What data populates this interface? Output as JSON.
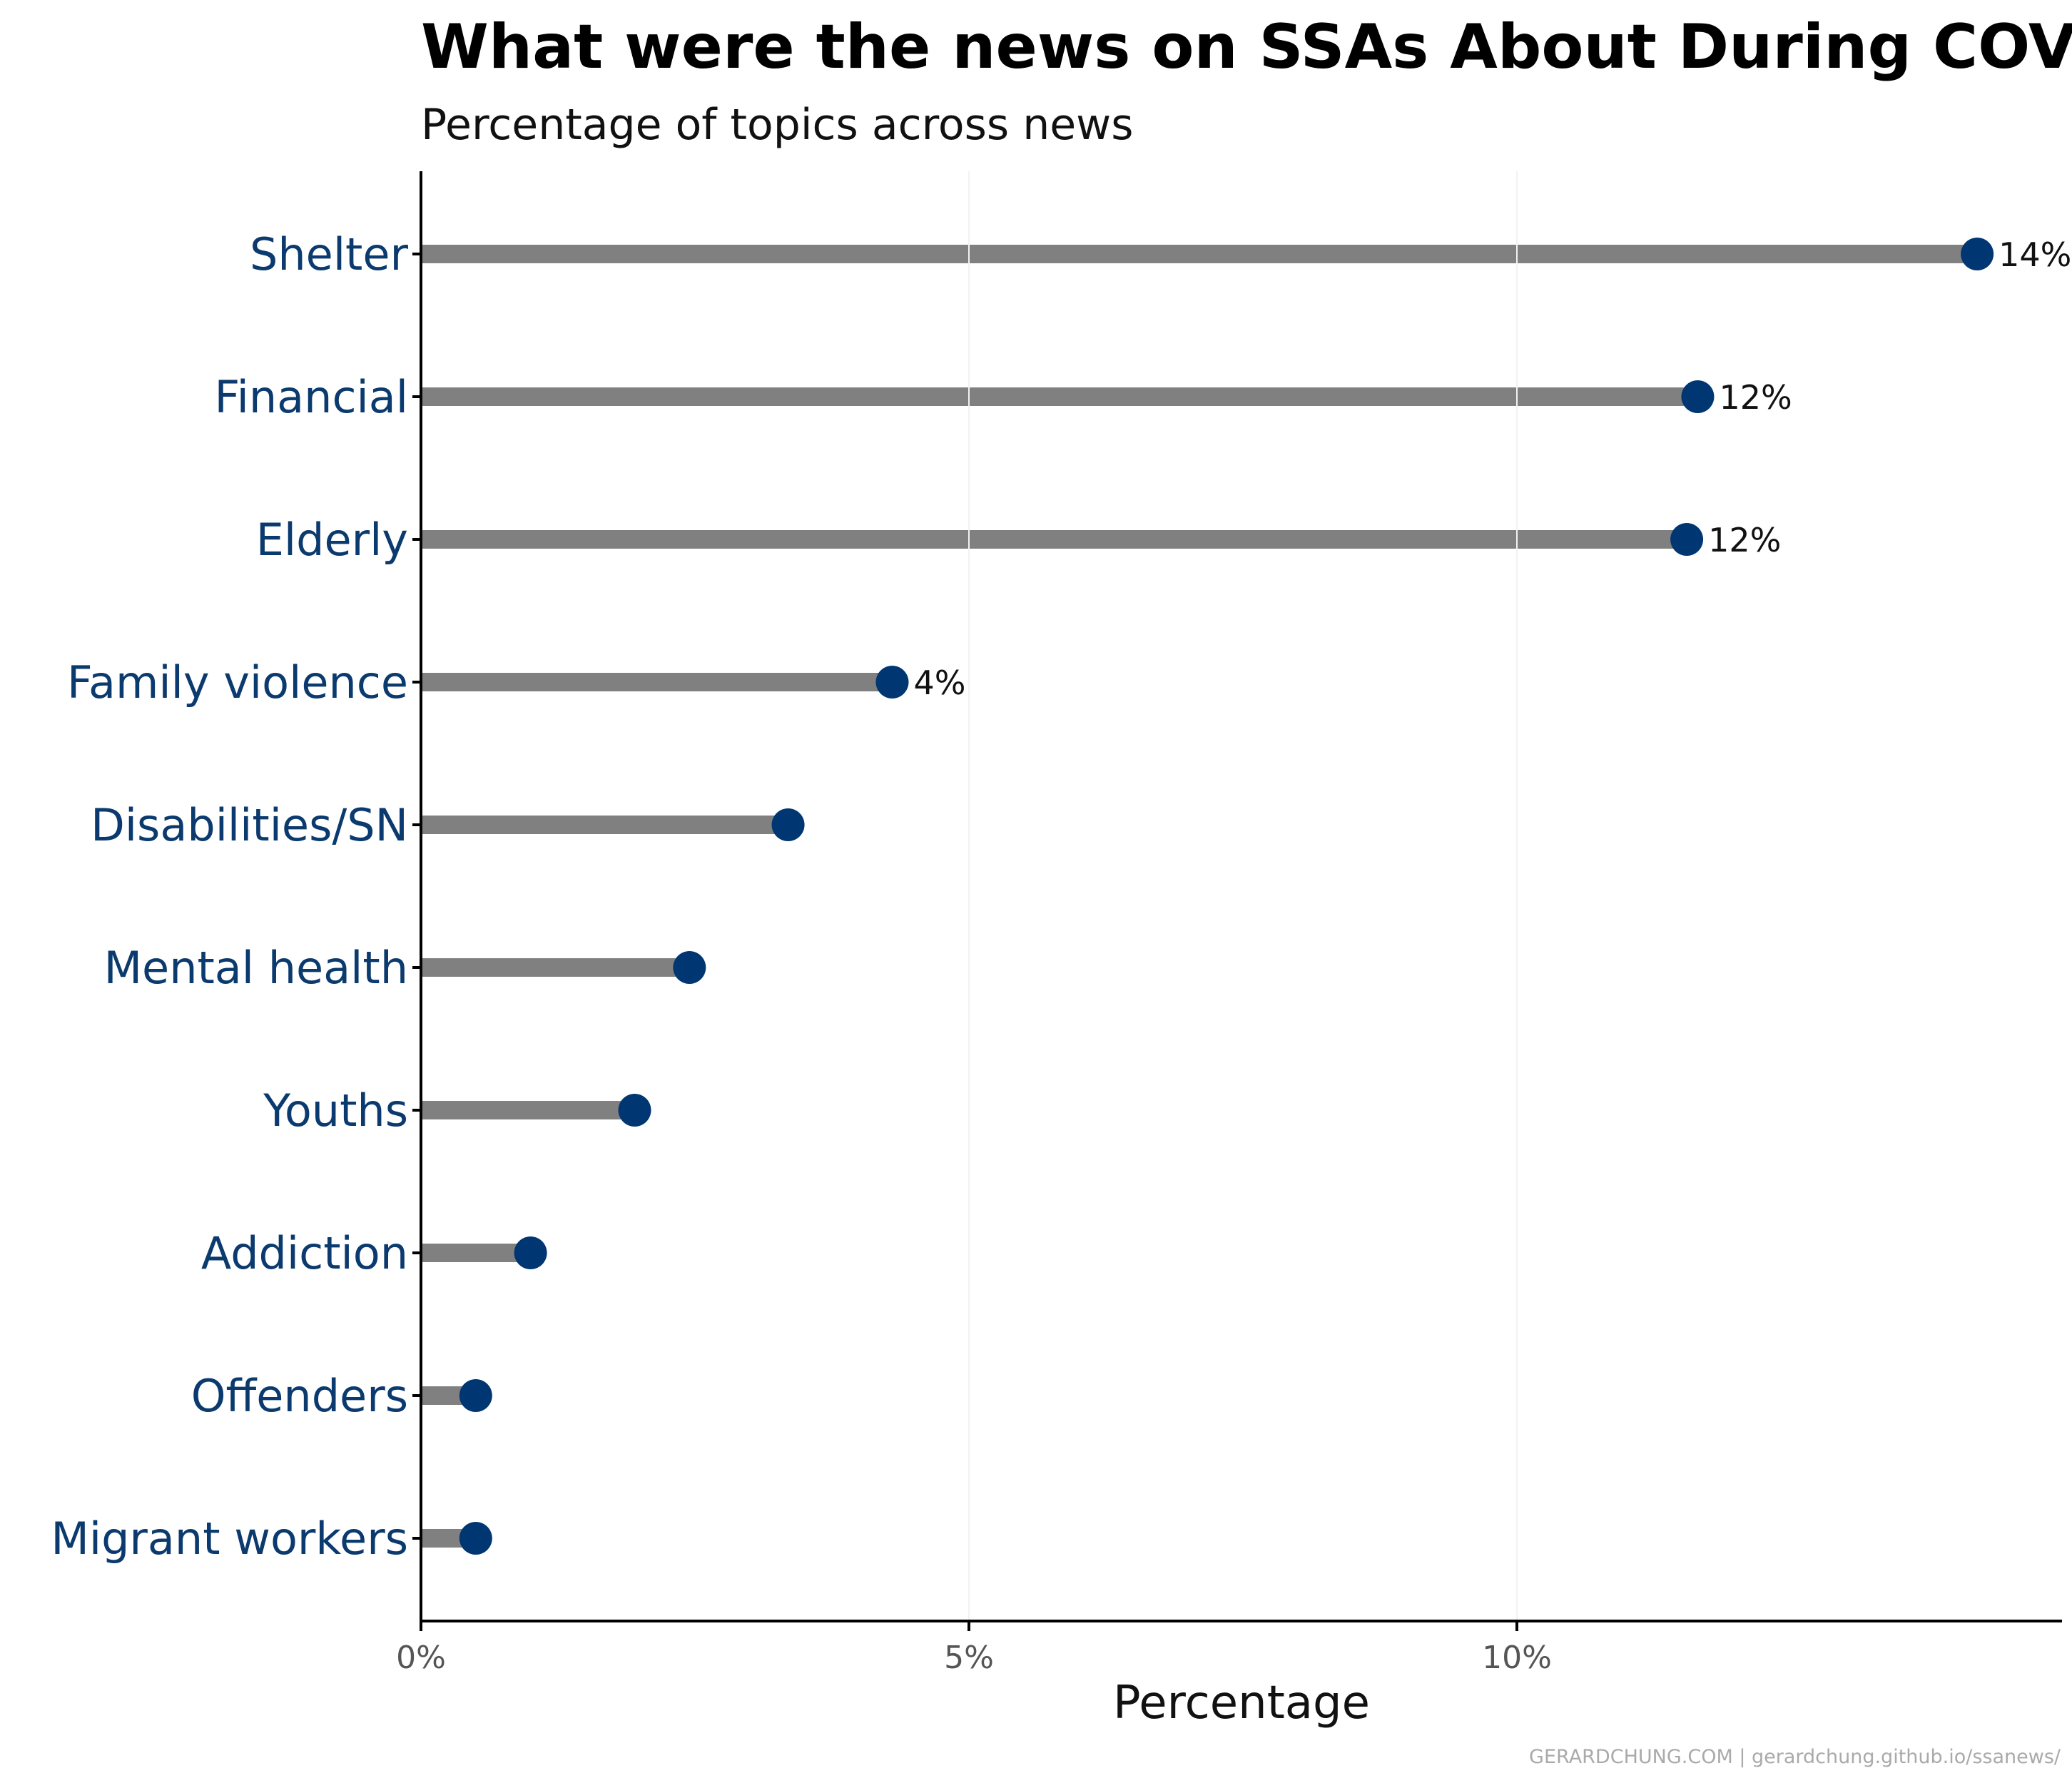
{
  "chart_data": {
    "type": "lollipop",
    "title": "What were the news on SSAs About During COVID?",
    "subtitle": "Percentage of topics across news",
    "xlabel": "Percentage",
    "ylabel": "",
    "xlim": [
      0,
      15
    ],
    "xticks": [
      {
        "value": 0,
        "label": "0%"
      },
      {
        "value": 5,
        "label": "5%"
      },
      {
        "value": 10,
        "label": "10%"
      }
    ],
    "grid": false,
    "categories": [
      "Shelter",
      "Financial",
      "Elderly",
      "Family violence",
      "Disabilities/SN",
      "Mental health",
      "Youths",
      "Addiction",
      "Offenders",
      "Migrant workers"
    ],
    "values": [
      14.2,
      11.65,
      11.55,
      4.3,
      3.35,
      2.45,
      1.95,
      1.0,
      0.5,
      0.5
    ],
    "data_labels": [
      "14%",
      "12%",
      "12%",
      "4%",
      "",
      "",
      "",
      "",
      "",
      ""
    ],
    "colors": {
      "stem": "#808080",
      "dot": "#003672",
      "category_text": "#0b3a6e",
      "axis": "#000000"
    },
    "caption": "GERARDCHUNG.COM  |  gerardchung.github.io/ssanews/"
  }
}
